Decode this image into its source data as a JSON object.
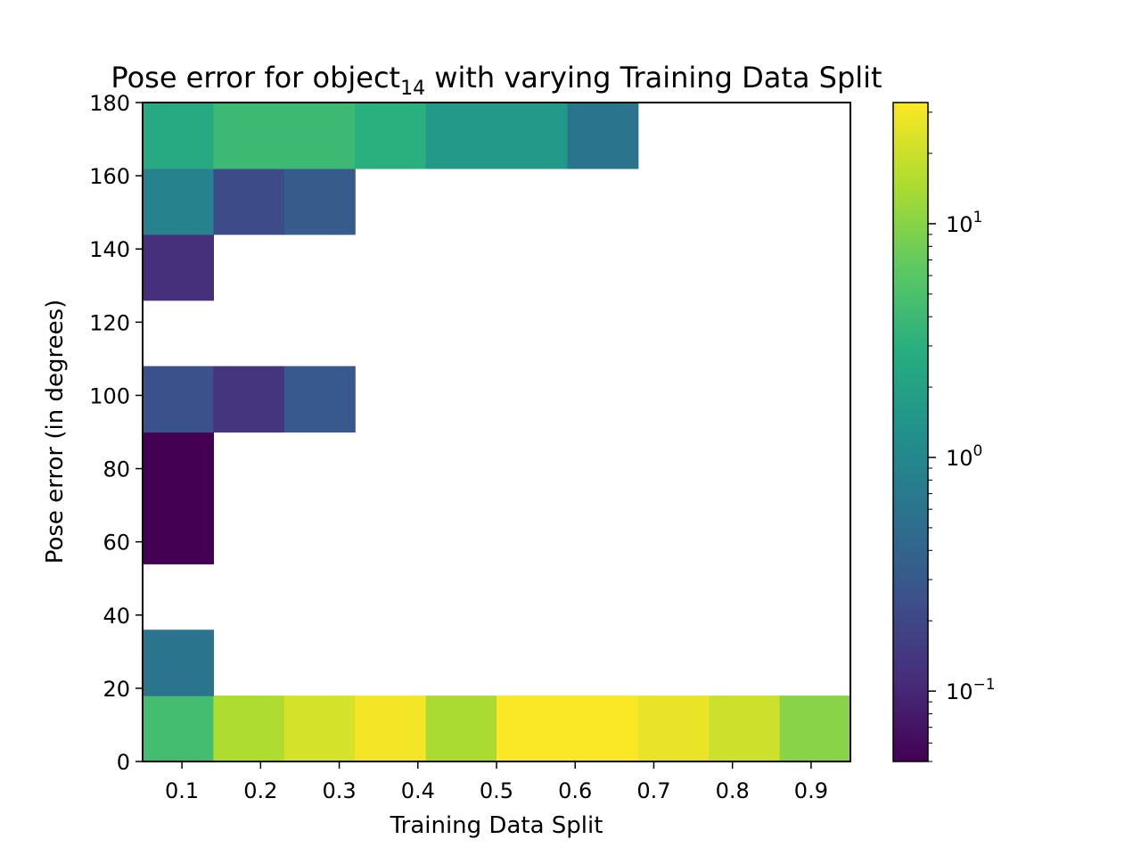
{
  "chart_data": {
    "type": "heatmap",
    "title_main": "Pose error for object",
    "title_sub": "14",
    "title_tail": " with varying Training Data Split",
    "xlabel": "Training Data Split",
    "ylabel": "Pose error (in degrees)",
    "x_ticks": [
      "0.1",
      "0.2",
      "0.3",
      "0.4",
      "0.5",
      "0.6",
      "0.7",
      "0.8",
      "0.9"
    ],
    "y_ticks": [
      "0",
      "20",
      "40",
      "60",
      "80",
      "100",
      "120",
      "140",
      "160",
      "180"
    ],
    "xlim": [
      0.05,
      0.95
    ],
    "ylim": [
      0,
      180
    ],
    "x_edges": [
      0.05,
      0.14,
      0.23,
      0.32,
      0.41,
      0.5,
      0.59,
      0.68,
      0.77,
      0.86,
      0.95
    ],
    "y_edges": [
      0,
      18,
      36,
      54,
      72,
      90,
      108,
      126,
      144,
      162,
      180
    ],
    "values": [
      [
        4.5,
        15,
        22,
        30,
        14,
        32,
        32,
        27,
        20,
        10
      ],
      [
        0.6,
        null,
        null,
        null,
        null,
        null,
        null,
        null,
        null,
        null
      ],
      [
        null,
        null,
        null,
        null,
        null,
        null,
        null,
        null,
        null,
        null
      ],
      [
        0.05,
        null,
        null,
        null,
        null,
        null,
        null,
        null,
        null,
        null
      ],
      [
        0.05,
        null,
        null,
        null,
        null,
        null,
        null,
        null,
        null,
        null
      ],
      [
        0.25,
        0.13,
        0.3,
        null,
        null,
        null,
        null,
        null,
        null,
        null
      ],
      [
        null,
        null,
        null,
        null,
        null,
        null,
        null,
        null,
        null,
        null
      ],
      [
        0.12,
        null,
        null,
        null,
        null,
        null,
        null,
        null,
        null,
        null
      ],
      [
        0.9,
        0.22,
        0.33,
        null,
        null,
        null,
        null,
        null,
        null,
        null
      ],
      [
        2.5,
        4.0,
        4.0,
        3.0,
        1.6,
        1.6,
        0.6,
        null,
        null,
        null
      ]
    ],
    "colorbar": {
      "scale": "log",
      "vmin": 0.05,
      "vmax": 33,
      "colormap": "viridis",
      "major_ticks": [
        {
          "value": 0.1,
          "base": "10",
          "exp": "−1"
        },
        {
          "value": 1,
          "base": "10",
          "exp": "0"
        },
        {
          "value": 10,
          "base": "10",
          "exp": "1"
        }
      ]
    },
    "grid": false
  }
}
